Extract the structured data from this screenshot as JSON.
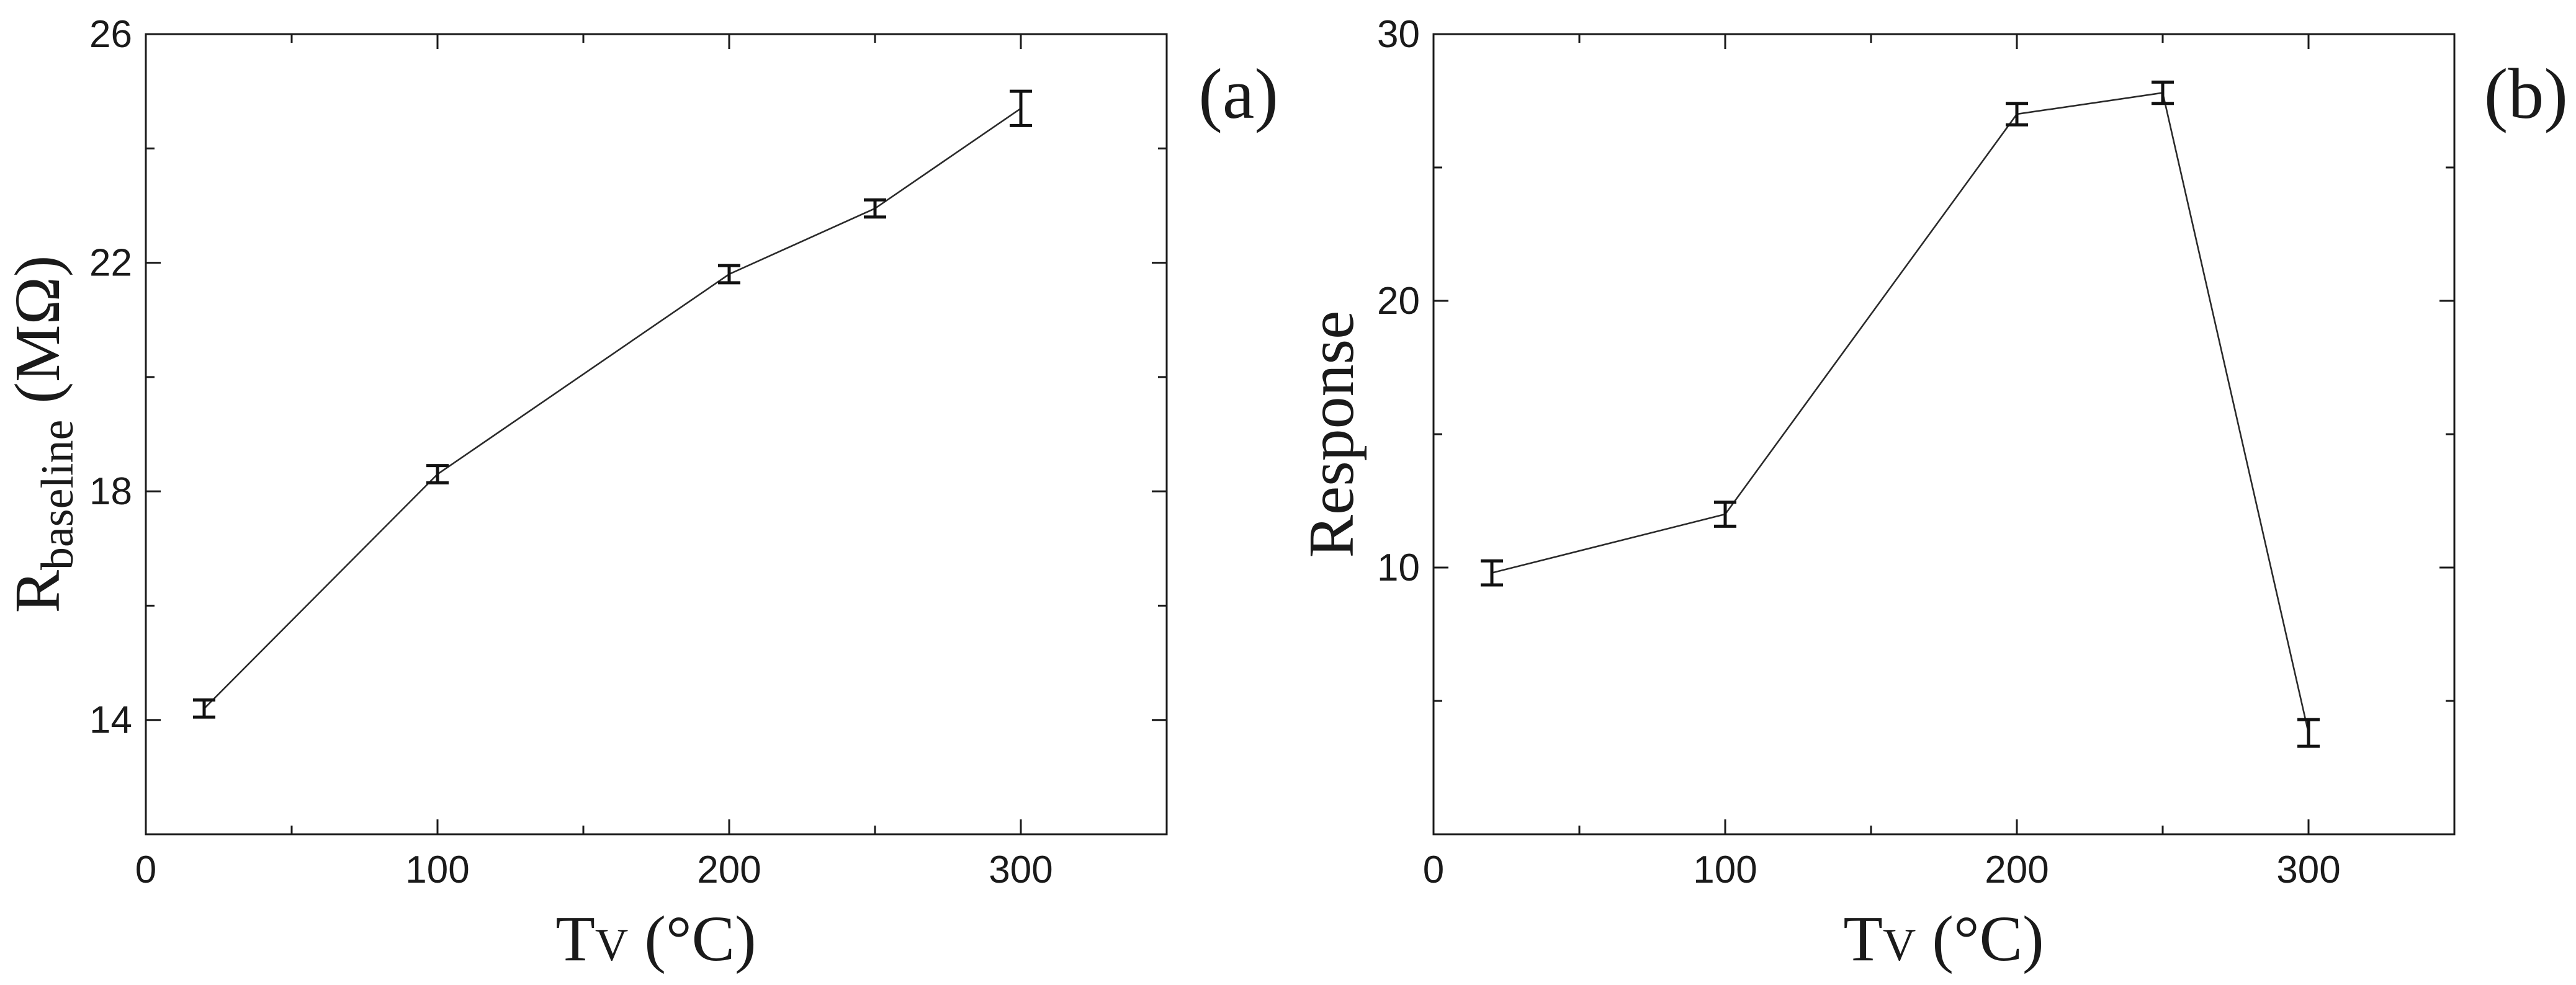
{
  "chart_data": [
    {
      "type": "line",
      "panel_label": "(a)",
      "xlabel": "T",
      "xlabel_sub": "V",
      "xlabel_unit": " (°C)",
      "ylabel": "R",
      "ylabel_sub": "baseline",
      "ylabel_unit": " (MΩ)",
      "xlim": [
        0,
        350
      ],
      "ylim": [
        12,
        26
      ],
      "xticks": [
        0,
        100,
        200,
        300
      ],
      "yticks": [
        14,
        18,
        22,
        26
      ],
      "x_minor_ticks": [
        50,
        150,
        250,
        350
      ],
      "y_minor_ticks": [
        16,
        20,
        24
      ],
      "grid": false,
      "points": [
        {
          "x": 20,
          "y": 14.2,
          "err": 0.15
        },
        {
          "x": 100,
          "y": 18.3,
          "err": 0.15
        },
        {
          "x": 200,
          "y": 21.8,
          "err": 0.15
        },
        {
          "x": 250,
          "y": 22.95,
          "err": 0.15
        },
        {
          "x": 300,
          "y": 24.7,
          "err": 0.3
        }
      ]
    },
    {
      "type": "line",
      "panel_label": "(b)",
      "xlabel": "T",
      "xlabel_sub": "V",
      "xlabel_unit": " (°C)",
      "ylabel": "Response",
      "xlim": [
        0,
        350
      ],
      "ylim": [
        0,
        30
      ],
      "xticks": [
        0,
        100,
        200,
        300
      ],
      "yticks": [
        10,
        20,
        30
      ],
      "x_minor_ticks": [
        50,
        150,
        250,
        350
      ],
      "y_minor_ticks": [
        5,
        15,
        25
      ],
      "grid": false,
      "points": [
        {
          "x": 20,
          "y": 9.8,
          "err": 0.45
        },
        {
          "x": 100,
          "y": 12.0,
          "err": 0.45
        },
        {
          "x": 200,
          "y": 27.0,
          "err": 0.4
        },
        {
          "x": 250,
          "y": 27.8,
          "err": 0.4
        },
        {
          "x": 300,
          "y": 3.8,
          "err": 0.5
        }
      ]
    }
  ]
}
